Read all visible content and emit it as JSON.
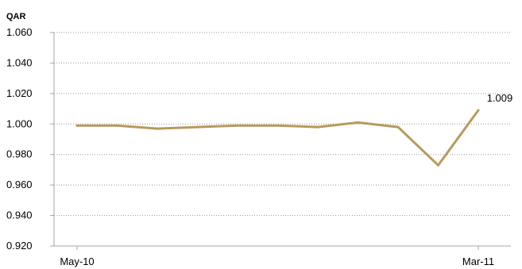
{
  "chart_data": {
    "type": "line",
    "title": "",
    "ylabel": "QAR",
    "xlabel": "",
    "ylim": [
      0.92,
      1.06
    ],
    "yticks": [
      "1.060",
      "1.040",
      "1.020",
      "1.000",
      "0.980",
      "0.960",
      "0.940",
      "0.920"
    ],
    "xtick_labels": [
      "May-10",
      "Mar-11"
    ],
    "grid": "horizontal dotted",
    "series": [
      {
        "values": [
          0.999,
          0.999,
          0.997,
          0.998,
          0.999,
          0.999,
          0.998,
          1.001,
          0.998,
          0.973,
          1.009
        ],
        "color": "#B79A5E"
      }
    ],
    "annotations": [
      "1.009"
    ]
  }
}
